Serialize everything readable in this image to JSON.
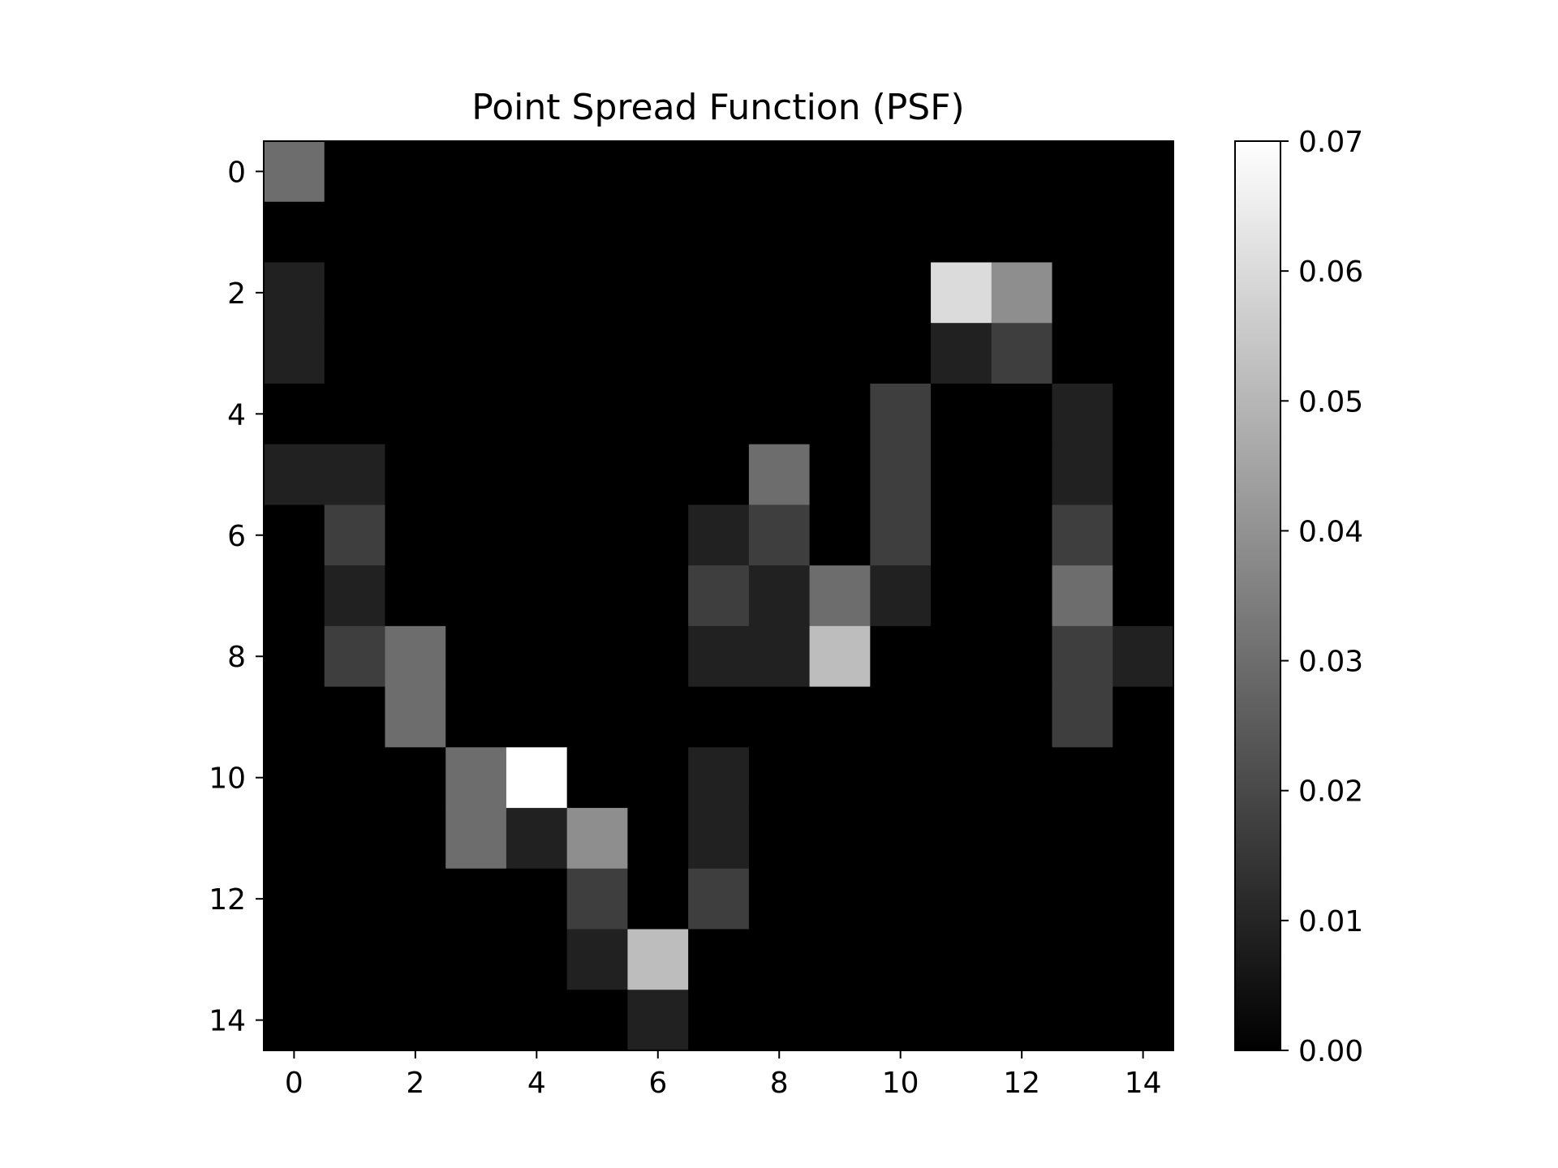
{
  "chart_data": {
    "type": "heatmap",
    "title": "Point Spread Function (PSF)",
    "xlabel": "",
    "ylabel": "",
    "colormap": "gray",
    "x_ticks": [
      "0",
      "2",
      "4",
      "6",
      "8",
      "10",
      "12",
      "14"
    ],
    "y_ticks": [
      "0",
      "2",
      "4",
      "6",
      "8",
      "10",
      "12",
      "14"
    ],
    "colorbar": {
      "range": [
        0,
        0.07
      ],
      "ticks": [
        "0.00",
        "0.01",
        "0.02",
        "0.03",
        "0.04",
        "0.05",
        "0.06",
        "0.07"
      ]
    },
    "grid": false,
    "values": [
      [
        0.03,
        0,
        0,
        0,
        0,
        0,
        0,
        0,
        0,
        0,
        0,
        0,
        0,
        0,
        0
      ],
      [
        0,
        0,
        0,
        0,
        0,
        0,
        0,
        0,
        0,
        0,
        0,
        0,
        0,
        0,
        0
      ],
      [
        0.009,
        0,
        0,
        0,
        0,
        0,
        0,
        0,
        0,
        0,
        0,
        0.06,
        0.039,
        0,
        0
      ],
      [
        0.009,
        0,
        0,
        0,
        0,
        0,
        0,
        0,
        0,
        0,
        0,
        0.009,
        0.017,
        0,
        0
      ],
      [
        0,
        0,
        0,
        0,
        0,
        0,
        0,
        0,
        0,
        0,
        0.017,
        0,
        0,
        0.009,
        0
      ],
      [
        0.009,
        0.009,
        0,
        0,
        0,
        0,
        0,
        0,
        0.03,
        0,
        0.017,
        0,
        0,
        0.009,
        0
      ],
      [
        0,
        0.017,
        0,
        0,
        0,
        0,
        0,
        0.009,
        0.017,
        0,
        0.017,
        0,
        0,
        0.017,
        0
      ],
      [
        0,
        0.009,
        0,
        0,
        0,
        0,
        0,
        0.017,
        0.009,
        0.03,
        0.009,
        0,
        0,
        0.03,
        0
      ],
      [
        0,
        0.017,
        0.03,
        0,
        0,
        0,
        0,
        0.009,
        0.009,
        0.052,
        0,
        0,
        0,
        0.017,
        0.009
      ],
      [
        0,
        0,
        0.03,
        0,
        0,
        0,
        0,
        0,
        0,
        0,
        0,
        0,
        0,
        0.017,
        0
      ],
      [
        0,
        0,
        0,
        0.03,
        0.07,
        0,
        0,
        0.009,
        0,
        0,
        0,
        0,
        0,
        0,
        0
      ],
      [
        0,
        0,
        0,
        0.03,
        0.009,
        0.039,
        0,
        0.009,
        0,
        0,
        0,
        0,
        0,
        0,
        0
      ],
      [
        0,
        0,
        0,
        0,
        0,
        0.017,
        0,
        0.017,
        0,
        0,
        0,
        0,
        0,
        0,
        0
      ],
      [
        0,
        0,
        0,
        0,
        0,
        0.009,
        0.052,
        0,
        0,
        0,
        0,
        0,
        0,
        0,
        0
      ],
      [
        0,
        0,
        0,
        0,
        0,
        0,
        0.009,
        0,
        0,
        0,
        0,
        0,
        0,
        0,
        0
      ]
    ]
  }
}
